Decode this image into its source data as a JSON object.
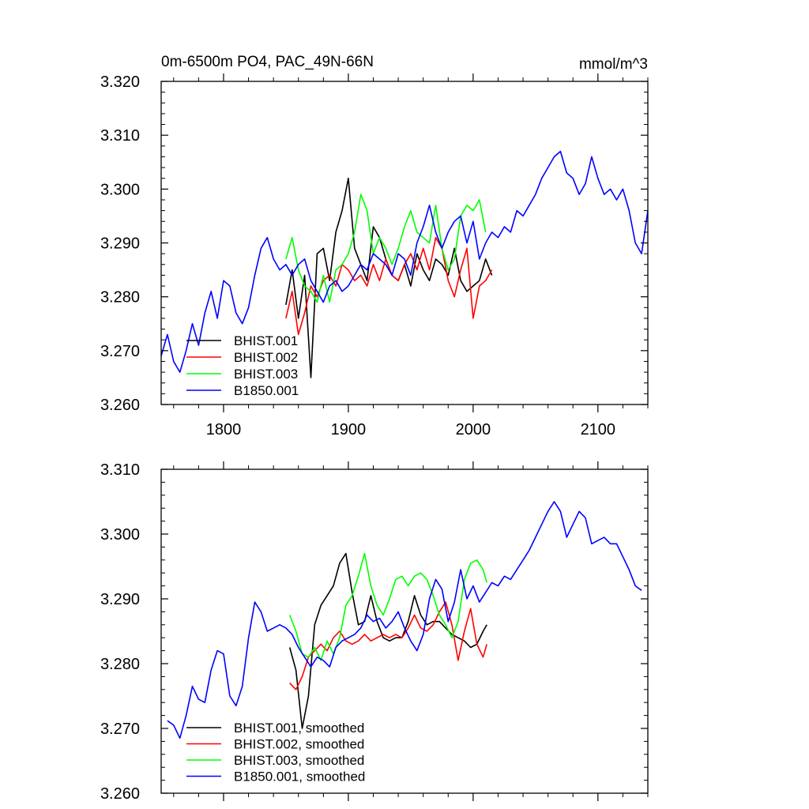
{
  "header": {
    "title": "0m-6500m PO4, PAC_49N-66N",
    "units": "mmol/m^3"
  },
  "colors": {
    "BHIST.001": "#000000",
    "BHIST.002": "#ff0000",
    "BHIST.003": "#00ff00",
    "B1850.001": "#0000ff"
  },
  "chart_data": [
    {
      "type": "line",
      "title": "0m-6500m PO4, PAC_49N-66N",
      "units_label": "mmol/m^3",
      "xlim": [
        1750,
        2140
      ],
      "ylim": [
        3.26,
        3.32
      ],
      "xticks": [
        1800,
        1900,
        2000,
        2100
      ],
      "xtick_labels": [
        "1800",
        "1900",
        "2000",
        "2100"
      ],
      "yticks": [
        3.26,
        3.27,
        3.28,
        3.29,
        3.3,
        3.31,
        3.32
      ],
      "ytick_labels": [
        "3.260",
        "3.270",
        "3.280",
        "3.290",
        "3.300",
        "3.310",
        "3.320"
      ],
      "legend_position": "bottom-left",
      "series": [
        {
          "name": "BHIST.001",
          "label": "BHIST.001",
          "x": [
            1850,
            1855,
            1860,
            1865,
            1870,
            1875,
            1880,
            1885,
            1890,
            1895,
            1900,
            1905,
            1910,
            1915,
            1920,
            1925,
            1930,
            1935,
            1940,
            1945,
            1950,
            1955,
            1960,
            1965,
            1970,
            1975,
            1980,
            1985,
            1990,
            1995,
            2000,
            2005,
            2010,
            2015
          ],
          "values": [
            3.2785,
            3.285,
            3.276,
            3.284,
            3.265,
            3.288,
            3.289,
            3.283,
            3.292,
            3.296,
            3.302,
            3.289,
            3.286,
            3.283,
            3.293,
            3.291,
            3.287,
            3.284,
            3.283,
            3.286,
            3.282,
            3.288,
            3.285,
            3.283,
            3.287,
            3.286,
            3.284,
            3.289,
            3.283,
            3.281,
            3.282,
            3.283,
            3.287,
            3.284
          ]
        },
        {
          "name": "BHIST.002",
          "label": "BHIST.002",
          "x": [
            1850,
            1855,
            1860,
            1865,
            1870,
            1875,
            1880,
            1885,
            1890,
            1895,
            1900,
            1905,
            1910,
            1915,
            1920,
            1925,
            1930,
            1935,
            1940,
            1945,
            1950,
            1955,
            1960,
            1965,
            1970,
            1975,
            1980,
            1985,
            1990,
            1995,
            2000,
            2005,
            2010,
            2015
          ],
          "values": [
            3.276,
            3.281,
            3.273,
            3.277,
            3.282,
            3.28,
            3.283,
            3.284,
            3.282,
            3.286,
            3.285,
            3.283,
            3.284,
            3.282,
            3.286,
            3.283,
            3.287,
            3.284,
            3.283,
            3.286,
            3.288,
            3.285,
            3.289,
            3.285,
            3.291,
            3.289,
            3.283,
            3.28,
            3.285,
            3.289,
            3.276,
            3.282,
            3.283,
            3.285
          ]
        },
        {
          "name": "BHIST.003",
          "label": "BHIST.003",
          "x": [
            1850,
            1855,
            1860,
            1865,
            1870,
            1875,
            1880,
            1885,
            1890,
            1895,
            1900,
            1905,
            1910,
            1915,
            1920,
            1925,
            1930,
            1935,
            1940,
            1945,
            1950,
            1955,
            1960,
            1965,
            1970,
            1975,
            1980,
            1985,
            1990,
            1995,
            2000,
            2005,
            2010
          ],
          "values": [
            3.287,
            3.291,
            3.285,
            3.282,
            3.281,
            3.279,
            3.284,
            3.279,
            3.285,
            3.286,
            3.288,
            3.292,
            3.299,
            3.296,
            3.288,
            3.291,
            3.289,
            3.286,
            3.289,
            3.293,
            3.296,
            3.292,
            3.291,
            3.29,
            3.297,
            3.289,
            3.285,
            3.287,
            3.295,
            3.297,
            3.296,
            3.298,
            3.292
          ]
        },
        {
          "name": "B1850.001",
          "label": "B1850.001",
          "x": [
            1750,
            1755,
            1760,
            1765,
            1770,
            1775,
            1780,
            1785,
            1790,
            1795,
            1800,
            1805,
            1810,
            1815,
            1820,
            1825,
            1830,
            1835,
            1840,
            1845,
            1850,
            1855,
            1860,
            1865,
            1870,
            1875,
            1880,
            1885,
            1890,
            1895,
            1900,
            1905,
            1910,
            1915,
            1920,
            1925,
            1930,
            1935,
            1940,
            1945,
            1950,
            1955,
            1960,
            1965,
            1970,
            1975,
            1980,
            1985,
            1990,
            1995,
            2000,
            2005,
            2010,
            2015,
            2020,
            2025,
            2030,
            2035,
            2040,
            2045,
            2050,
            2055,
            2060,
            2065,
            2070,
            2075,
            2080,
            2085,
            2090,
            2095,
            2100,
            2105,
            2110,
            2115,
            2120,
            2125,
            2130,
            2135,
            2140
          ],
          "values": [
            3.269,
            3.273,
            3.268,
            3.266,
            3.27,
            3.275,
            3.271,
            3.277,
            3.281,
            3.276,
            3.283,
            3.282,
            3.277,
            3.275,
            3.278,
            3.284,
            3.289,
            3.291,
            3.287,
            3.285,
            3.286,
            3.284,
            3.286,
            3.287,
            3.283,
            3.281,
            3.279,
            3.282,
            3.283,
            3.281,
            3.282,
            3.284,
            3.286,
            3.285,
            3.288,
            3.287,
            3.286,
            3.284,
            3.288,
            3.287,
            3.284,
            3.29,
            3.293,
            3.297,
            3.292,
            3.289,
            3.292,
            3.294,
            3.295,
            3.29,
            3.294,
            3.287,
            3.29,
            3.292,
            3.291,
            3.293,
            3.292,
            3.296,
            3.295,
            3.297,
            3.299,
            3.302,
            3.304,
            3.306,
            3.307,
            3.303,
            3.302,
            3.299,
            3.301,
            3.306,
            3.302,
            3.299,
            3.3,
            3.298,
            3.3,
            3.296,
            3.29,
            3.288,
            3.296
          ]
        }
      ]
    },
    {
      "type": "line",
      "title": "",
      "xlim": [
        1750,
        2140
      ],
      "ylim": [
        3.26,
        3.31
      ],
      "xticks": [
        1800,
        1900,
        2000,
        2100
      ],
      "xtick_labels": [],
      "yticks": [
        3.26,
        3.27,
        3.28,
        3.29,
        3.3,
        3.31
      ],
      "ytick_labels": [
        "3.260",
        "3.270",
        "3.280",
        "3.290",
        "3.300",
        "3.310"
      ],
      "legend_position": "bottom-left",
      "series": [
        {
          "name": "BHIST.001",
          "label": "BHIST.001, smoothed",
          "x": [
            1853,
            1858,
            1863,
            1868,
            1873,
            1878,
            1883,
            1888,
            1893,
            1898,
            1903,
            1908,
            1913,
            1918,
            1923,
            1928,
            1933,
            1938,
            1943,
            1948,
            1953,
            1958,
            1963,
            1968,
            1973,
            1978,
            1983,
            1988,
            1993,
            1998,
            2003,
            2008,
            2011
          ],
          "values": [
            3.2825,
            3.279,
            3.27,
            3.275,
            3.286,
            3.289,
            3.2905,
            3.292,
            3.2955,
            3.297,
            3.291,
            3.286,
            3.2865,
            3.2905,
            3.2865,
            3.284,
            3.2835,
            3.284,
            3.284,
            3.2865,
            3.2905,
            3.2875,
            3.286,
            3.2865,
            3.2865,
            3.2855,
            3.2845,
            3.284,
            3.2835,
            3.2825,
            3.283,
            3.285,
            3.286
          ]
        },
        {
          "name": "BHIST.002",
          "label": "BHIST.002, smoothed",
          "x": [
            1853,
            1858,
            1863,
            1868,
            1873,
            1878,
            1883,
            1888,
            1893,
            1898,
            1903,
            1908,
            1913,
            1918,
            1923,
            1928,
            1933,
            1938,
            1943,
            1948,
            1953,
            1958,
            1963,
            1968,
            1973,
            1978,
            1983,
            1988,
            1993,
            1998,
            2003,
            2008,
            2011
          ],
          "values": [
            3.277,
            3.276,
            3.278,
            3.281,
            3.282,
            3.283,
            3.282,
            3.284,
            3.285,
            3.2835,
            3.283,
            3.2835,
            3.2845,
            3.2835,
            3.284,
            3.2845,
            3.284,
            3.2845,
            3.284,
            3.2855,
            3.2875,
            3.2855,
            3.285,
            3.286,
            3.288,
            3.2895,
            3.286,
            3.2805,
            3.285,
            3.2885,
            3.283,
            3.281,
            3.283
          ]
        },
        {
          "name": "BHIST.003",
          "label": "BHIST.003, smoothed",
          "x": [
            1853,
            1858,
            1863,
            1868,
            1873,
            1878,
            1883,
            1888,
            1893,
            1898,
            1903,
            1908,
            1913,
            1918,
            1923,
            1928,
            1933,
            1938,
            1943,
            1948,
            1953,
            1958,
            1963,
            1968,
            1973,
            1978,
            1983,
            1988,
            1993,
            1998,
            2003,
            2008,
            2011
          ],
          "values": [
            3.2875,
            3.285,
            3.2815,
            3.281,
            3.2825,
            3.2805,
            3.2835,
            3.2815,
            3.284,
            3.289,
            3.2905,
            3.2935,
            3.297,
            3.292,
            3.289,
            3.2875,
            3.29,
            3.293,
            3.2935,
            3.292,
            3.2935,
            3.294,
            3.293,
            3.2905,
            3.2875,
            3.286,
            3.284,
            3.2865,
            3.293,
            3.2955,
            3.296,
            3.2945,
            3.2925
          ]
        },
        {
          "name": "B1850.001",
          "label": "B1850.001, smoothed",
          "x": [
            1755,
            1760,
            1765,
            1770,
            1775,
            1780,
            1785,
            1790,
            1795,
            1800,
            1805,
            1810,
            1815,
            1820,
            1825,
            1830,
            1835,
            1840,
            1845,
            1850,
            1855,
            1860,
            1865,
            1870,
            1875,
            1880,
            1885,
            1890,
            1895,
            1900,
            1905,
            1910,
            1915,
            1920,
            1925,
            1930,
            1935,
            1940,
            1945,
            1950,
            1955,
            1960,
            1965,
            1970,
            1975,
            1980,
            1985,
            1990,
            1995,
            2000,
            2005,
            2010,
            2015,
            2020,
            2025,
            2030,
            2035,
            2040,
            2045,
            2050,
            2055,
            2060,
            2065,
            2070,
            2075,
            2080,
            2085,
            2090,
            2095,
            2100,
            2105,
            2110,
            2115,
            2120,
            2125,
            2130,
            2135
          ],
          "values": [
            3.2712,
            3.2705,
            3.2685,
            3.272,
            3.2765,
            3.2745,
            3.274,
            3.279,
            3.282,
            3.2815,
            3.275,
            3.2735,
            3.2765,
            3.284,
            3.2895,
            3.288,
            3.285,
            3.2855,
            3.286,
            3.2855,
            3.2845,
            3.2825,
            3.281,
            3.2795,
            3.281,
            3.2805,
            3.2795,
            3.2825,
            3.2835,
            3.284,
            3.2845,
            3.2855,
            3.2875,
            3.2865,
            3.287,
            3.2855,
            3.2865,
            3.288,
            3.2855,
            3.2835,
            3.282,
            3.2845,
            3.29,
            3.293,
            3.2915,
            3.2865,
            3.2895,
            3.2945,
            3.29,
            3.292,
            3.2895,
            3.291,
            3.2925,
            3.292,
            3.2935,
            3.293,
            3.2945,
            3.296,
            3.2975,
            3.2995,
            3.3015,
            3.3035,
            3.305,
            3.3035,
            3.2995,
            3.3015,
            3.3035,
            3.3025,
            3.2985,
            3.299,
            3.2995,
            3.2985,
            3.2985,
            3.2965,
            3.2945,
            3.292,
            3.2913
          ]
        }
      ]
    }
  ]
}
